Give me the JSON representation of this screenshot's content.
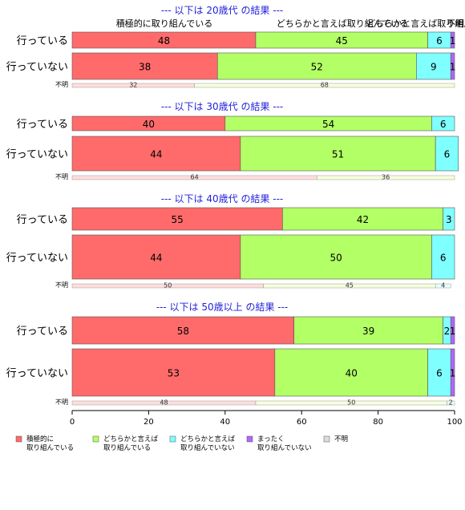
{
  "chart_data": {
    "type": "bar",
    "orientation": "horizontal-stacked-percent",
    "xlim": [
      0,
      100
    ],
    "x_ticks": [
      "0",
      "20",
      "40",
      "60",
      "80",
      "100"
    ],
    "categories_header": [
      "積極的に取り組んでいる",
      "どちらかと言えば取り組んでいる",
      "どちらかと言えば取り組んでいない",
      "不明"
    ],
    "series": [
      {
        "name": "積極的に\n取り組んでいる",
        "color": "#ff6b6b"
      },
      {
        "name": "どちらかと言えば\n取り組んでいる",
        "color": "#b3ff66"
      },
      {
        "name": "どちらかと言えば\n取り組んでいない",
        "color": "#80ffff"
      },
      {
        "name": "まったく\n取り組んでいない",
        "color": "#b266ff"
      },
      {
        "name": "不明",
        "color": "#dddddd"
      }
    ],
    "panels": [
      {
        "title": "--- 以下は 20歳代 の結果 ---",
        "rows": [
          {
            "label": "行っている",
            "values": [
              48,
              45,
              6,
              1
            ]
          },
          {
            "label": "行っていない",
            "values": [
              38,
              52,
              9,
              1
            ]
          }
        ],
        "unknown": {
          "label": "不明",
          "values": [
            32,
            68
          ],
          "colors": [
            "#ffdddd",
            "#f6ffdd"
          ]
        }
      },
      {
        "title": "--- 以下は 30歳代 の結果 ---",
        "rows": [
          {
            "label": "行っている",
            "values": [
              40,
              54,
              6,
              0
            ]
          },
          {
            "label": "行っていない",
            "values": [
              44,
              51,
              6,
              0
            ]
          }
        ],
        "unknown": {
          "label": "不明",
          "values": [
            64,
            36
          ],
          "colors": [
            "#ffdddd",
            "#f6ffdd"
          ]
        }
      },
      {
        "title": "--- 以下は 40歳代 の結果 ---",
        "rows": [
          {
            "label": "行っている",
            "values": [
              55,
              42,
              3,
              0
            ]
          },
          {
            "label": "行っていない",
            "values": [
              44,
              50,
              6,
              0
            ]
          }
        ],
        "unknown": {
          "label": "不明",
          "values": [
            50,
            45,
            4
          ],
          "colors": [
            "#ffdddd",
            "#f6ffdd",
            "#e6ffff"
          ]
        }
      },
      {
        "title": "--- 以下は 50歳以上 の結果 ---",
        "rows": [
          {
            "label": "行っている",
            "values": [
              58,
              39,
              2,
              1
            ]
          },
          {
            "label": "行っていない",
            "values": [
              53,
              40,
              6,
              1
            ]
          }
        ],
        "unknown": {
          "label": "不明",
          "values": [
            48,
            50,
            2
          ],
          "colors": [
            "#ffdddd",
            "#f6ffdd",
            "#e6ffff"
          ]
        }
      }
    ]
  }
}
